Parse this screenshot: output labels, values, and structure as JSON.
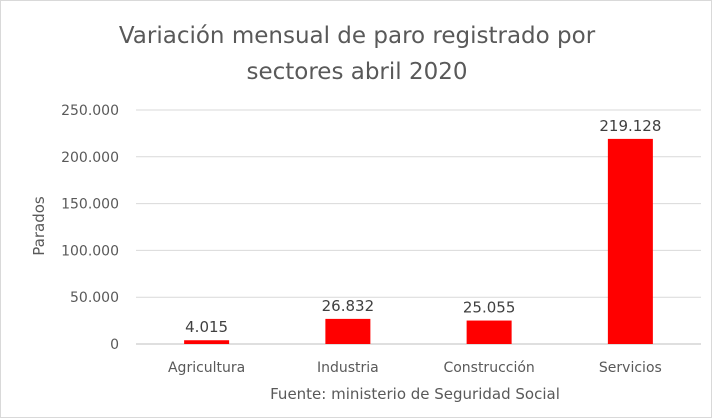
{
  "chart_data": {
    "type": "bar",
    "title_lines": [
      "Variación mensual de paro registrado por",
      "sectores abril 2020"
    ],
    "categories": [
      "Agricultura",
      "Industria",
      "Construcción",
      "Servicios"
    ],
    "values": [
      4015,
      26832,
      25055,
      219128
    ],
    "data_labels": [
      "4.015",
      "26.832",
      "25.055",
      "219.128"
    ],
    "ylabel": "Parados",
    "xlabel": "Fuente: ministerio de Seguridad Social",
    "ylim": [
      0,
      250000
    ],
    "yticks": [
      0,
      50000,
      100000,
      150000,
      200000,
      250000
    ],
    "ytick_labels": [
      "0",
      "50.000",
      "100.000",
      "150.000",
      "200.000",
      "250.000"
    ],
    "grid": true,
    "legend": "none",
    "bar_color": "#ff0000"
  }
}
